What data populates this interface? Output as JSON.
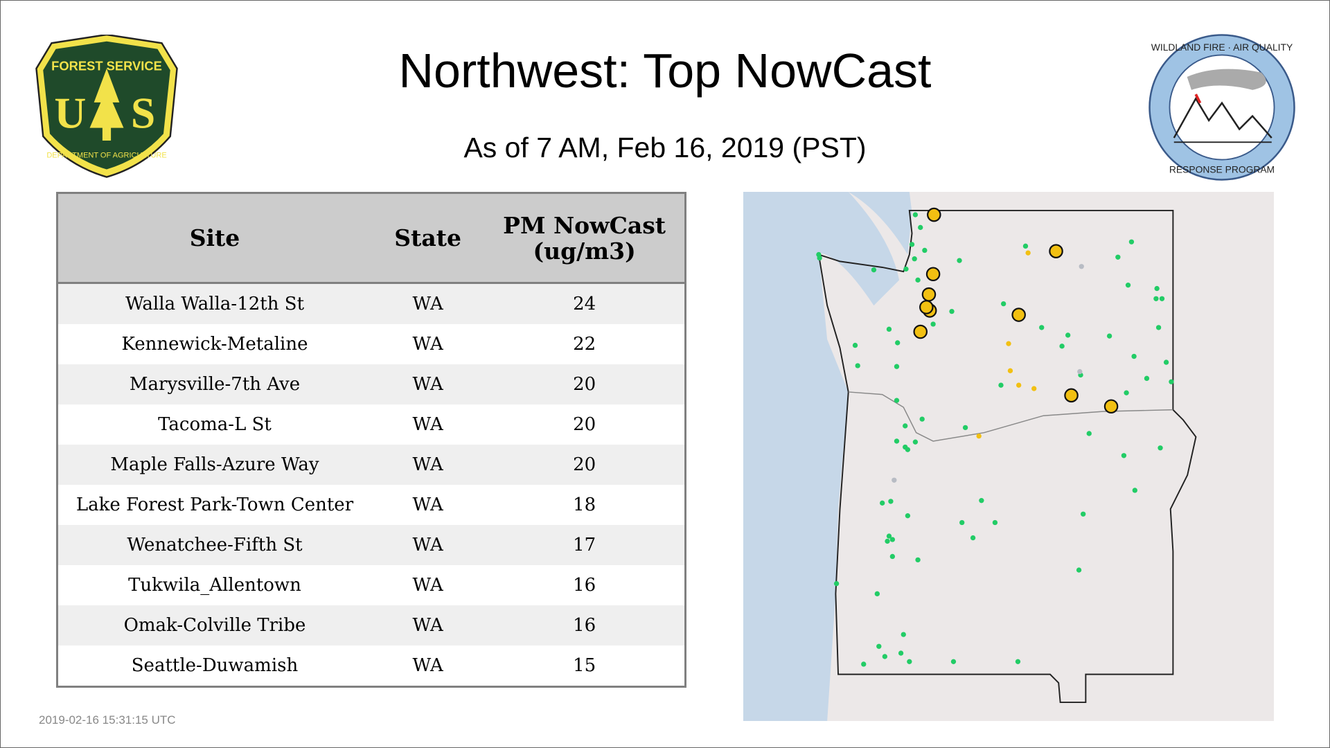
{
  "header": {
    "title": "Northwest: Top NowCast",
    "subtitle": "As of  7 AM, Feb 16, 2019 (PST)"
  },
  "logos": {
    "left": "FOREST SERVICE U S DEPARTMENT OF AGRICULTURE",
    "right": "WILDLAND FIRE · AIR QUALITY RESPONSE PROGRAM"
  },
  "table": {
    "columns": [
      "Site",
      "State",
      "PM NowCast (ug/m3)"
    ],
    "rows": [
      {
        "site": "Walla Walla-12th St",
        "state": "WA",
        "value": "24"
      },
      {
        "site": "Kennewick-Metaline",
        "state": "WA",
        "value": "22"
      },
      {
        "site": "Marysville-7th Ave",
        "state": "WA",
        "value": "20"
      },
      {
        "site": "Tacoma-L St",
        "state": "WA",
        "value": "20"
      },
      {
        "site": "Maple Falls-Azure Way",
        "state": "WA",
        "value": "20"
      },
      {
        "site": "Lake Forest Park-Town Center",
        "state": "WA",
        "value": "18"
      },
      {
        "site": "Wenatchee-Fifth St",
        "state": "WA",
        "value": "17"
      },
      {
        "site": "Tukwila_Allentown",
        "state": "WA",
        "value": "16"
      },
      {
        "site": "Omak-Colville Tribe",
        "state": "WA",
        "value": "16"
      },
      {
        "site": "Seattle-Duwamish",
        "state": "WA",
        "value": "15"
      }
    ]
  },
  "map": {
    "colors": {
      "good": "#22cc66",
      "moderate": "#f2c012",
      "nodata": "#b8bcc4",
      "water": "#c6d7e8",
      "land": "#ece8e8"
    }
  },
  "footer": {
    "timestamp": "2019-02-16 15:31:15 UTC"
  }
}
